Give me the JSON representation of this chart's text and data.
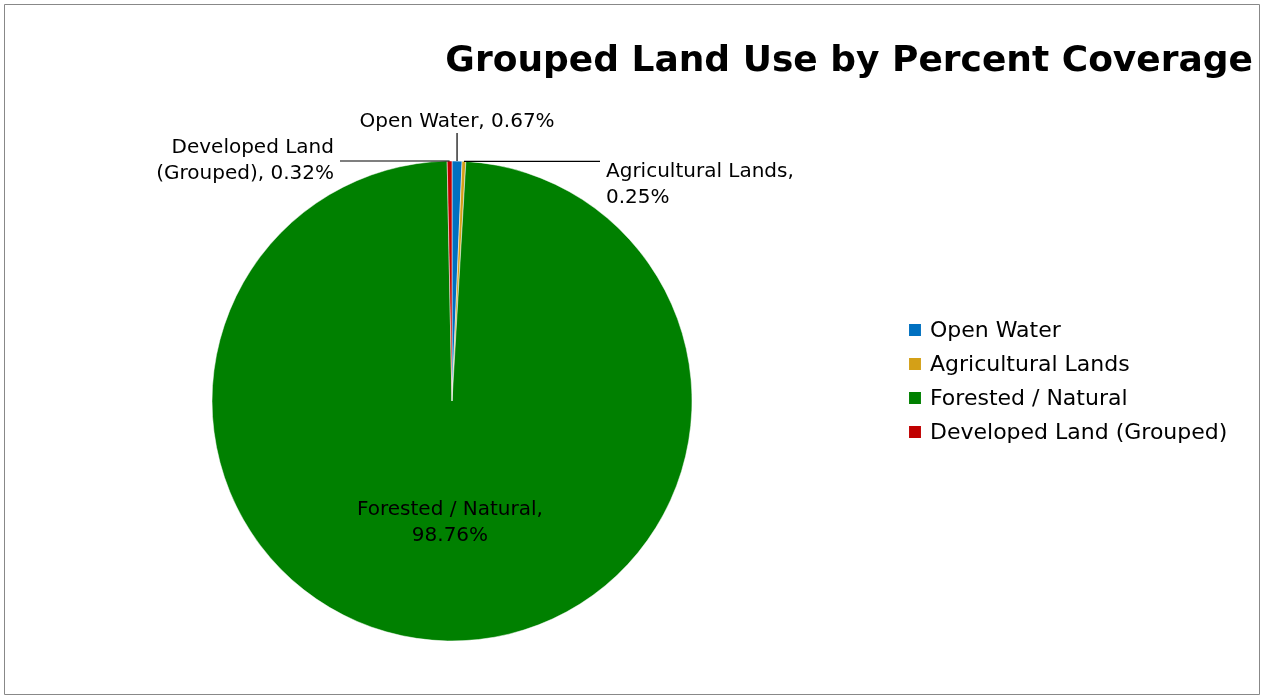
{
  "chart_data": {
    "type": "pie",
    "title": "Grouped Land Use by Percent Coverage",
    "categories": [
      "Open Water",
      "Agricultural Lands",
      "Forested / Natural",
      "Developed Land (Grouped)"
    ],
    "values": [
      0.67,
      0.25,
      98.76,
      0.32
    ],
    "colors": [
      "#0070c0",
      "#d4a017",
      "#008000",
      "#c00000"
    ],
    "value_labels": [
      "Open Water, 0.67%",
      "Agricultural Lands, 0.25%",
      "Forested / Natural, 98.76%",
      "Developed Land (Grouped), 0.32%"
    ],
    "legend": "right"
  }
}
